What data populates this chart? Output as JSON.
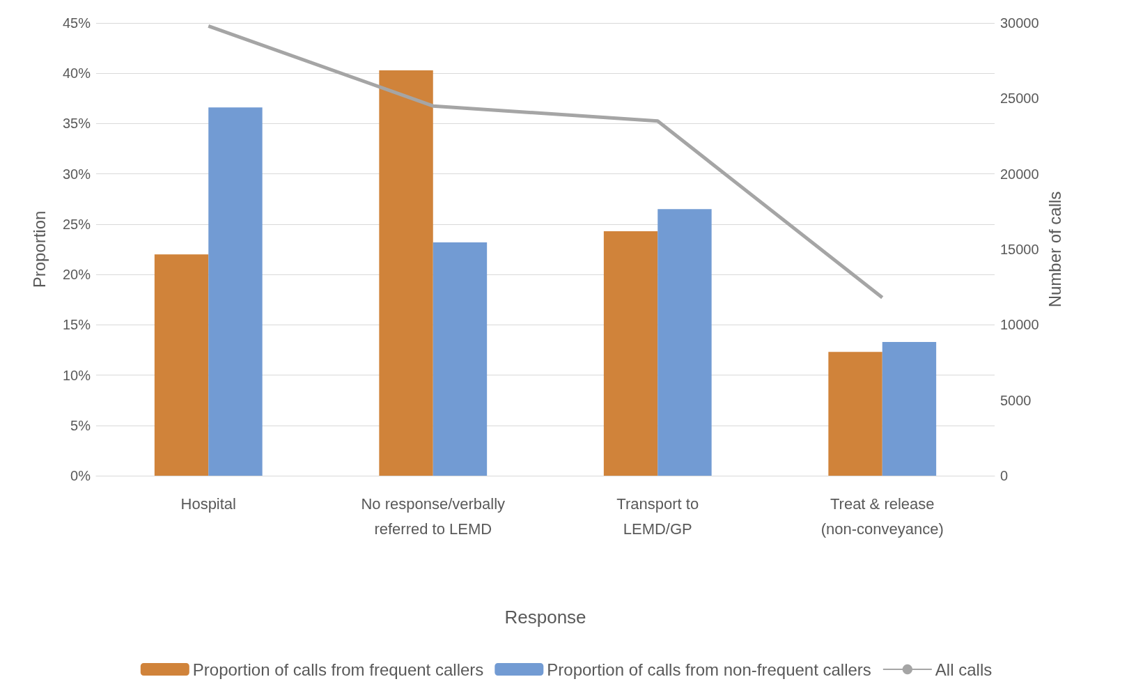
{
  "chart_data": {
    "type": "bar",
    "xlabel": "Response",
    "ylabel": "Proportion",
    "y2label": "Number of calls",
    "categories": [
      "Hospital",
      "No response/verbally\nreferred to LEMD",
      "Transport to\nLEMD/GP",
      "Treat & release\n(non-conveyance)"
    ],
    "series": [
      {
        "name": "Proportion of calls from frequent callers",
        "color": "#d0833a",
        "values": [
          22.0,
          40.3,
          24.3,
          12.3
        ]
      },
      {
        "name": "Proportion of calls from non-frequent callers",
        "color": "#729bd3",
        "values": [
          36.6,
          23.2,
          26.5,
          13.3
        ]
      },
      {
        "name": "All calls",
        "type": "line",
        "axis": "y2",
        "color": "#a5a5a5",
        "values": [
          29800,
          24500,
          23500,
          11800
        ]
      }
    ],
    "ylim": [
      0,
      45
    ],
    "yticks": [
      {
        "value": 0,
        "label": "0%"
      },
      {
        "value": 5,
        "label": "5%"
      },
      {
        "value": 10,
        "label": "10%"
      },
      {
        "value": 15,
        "label": "15%"
      },
      {
        "value": 20,
        "label": "20%"
      },
      {
        "value": 25,
        "label": "25%"
      },
      {
        "value": 30,
        "label": "30%"
      },
      {
        "value": 35,
        "label": "35%"
      },
      {
        "value": 40,
        "label": "40%"
      },
      {
        "value": 45,
        "label": "45%"
      }
    ],
    "y2lim": [
      0,
      30000
    ],
    "y2ticks": [
      0,
      5000,
      10000,
      15000,
      20000,
      25000,
      30000
    ],
    "grid": "y",
    "legend": "bottom",
    "marker": "none"
  }
}
